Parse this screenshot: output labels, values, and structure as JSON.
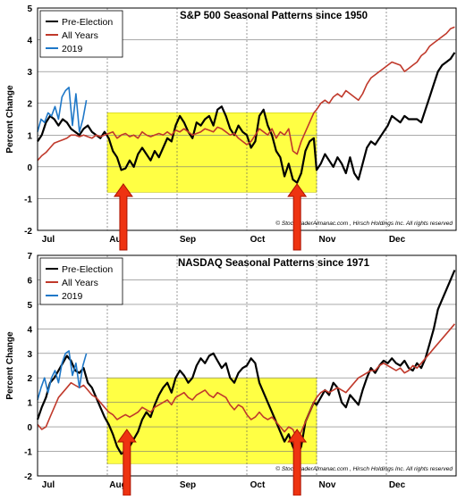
{
  "chart_data": [
    {
      "type": "line",
      "title": "S&P 500 Seasonal Patterns since 1950",
      "ylabel": "Percent Change",
      "xlabel": "",
      "x_range": [
        0,
        6
      ],
      "ylim": [
        -2,
        5
      ],
      "y_ticks": [
        -2,
        -1,
        0,
        1,
        2,
        3,
        4,
        5
      ],
      "month_ticks": [
        {
          "label": "Jul",
          "x": 0.0
        },
        {
          "label": "Aug",
          "x": 1.0
        },
        {
          "label": "Sep",
          "x": 2.0
        },
        {
          "label": "Oct",
          "x": 3.0
        },
        {
          "label": "Nov",
          "x": 4.0
        },
        {
          "label": "Dec",
          "x": 5.0
        }
      ],
      "grid": true,
      "legend_position": "top-left",
      "colors": {
        "Pre-Election": "#000000",
        "All Years": "#c0392b",
        "2019": "#1f78c8"
      },
      "highlight": {
        "x_start": 1.0,
        "x_end": 4.0,
        "y_start": -0.8,
        "y_end": 1.7,
        "color": "#ffff44"
      },
      "arrows": [
        {
          "x": 1.23
        },
        {
          "x": 3.72
        }
      ],
      "annotation": "© StockTraderAlmanac.com , Hirsch Holdings Inc. All rights reserved",
      "series": [
        {
          "name": "Pre-Election",
          "x": [
            0.0,
            0.06,
            0.12,
            0.18,
            0.24,
            0.3,
            0.36,
            0.42,
            0.48,
            0.54,
            0.6,
            0.66,
            0.72,
            0.78,
            0.84,
            0.9,
            0.96,
            1.02,
            1.08,
            1.14,
            1.2,
            1.26,
            1.32,
            1.38,
            1.44,
            1.5,
            1.56,
            1.62,
            1.68,
            1.74,
            1.8,
            1.86,
            1.92,
            1.98,
            2.04,
            2.1,
            2.16,
            2.22,
            2.28,
            2.34,
            2.4,
            2.46,
            2.52,
            2.58,
            2.64,
            2.7,
            2.76,
            2.82,
            2.88,
            2.94,
            3.0,
            3.06,
            3.12,
            3.18,
            3.24,
            3.3,
            3.36,
            3.42,
            3.48,
            3.54,
            3.6,
            3.66,
            3.72,
            3.78,
            3.84,
            3.9,
            3.96,
            4.0,
            4.06,
            4.12,
            4.18,
            4.24,
            4.3,
            4.36,
            4.42,
            4.48,
            4.54,
            4.6,
            4.66,
            4.72,
            4.78,
            4.84,
            4.9,
            4.96,
            5.02,
            5.08,
            5.14,
            5.2,
            5.26,
            5.32,
            5.38,
            5.44,
            5.5,
            5.56,
            5.62,
            5.68,
            5.74,
            5.8,
            5.86,
            5.92,
            5.98
          ],
          "y": [
            0.8,
            1.0,
            1.4,
            1.6,
            1.5,
            1.3,
            1.5,
            1.4,
            1.2,
            1.1,
            1.0,
            1.2,
            1.3,
            1.1,
            1.0,
            0.9,
            1.1,
            0.9,
            0.5,
            0.3,
            -0.1,
            -0.05,
            0.2,
            0.0,
            0.4,
            0.6,
            0.4,
            0.2,
            0.5,
            0.3,
            0.6,
            0.9,
            0.8,
            1.3,
            1.6,
            1.4,
            1.1,
            0.9,
            1.4,
            1.3,
            1.5,
            1.6,
            1.3,
            1.8,
            1.9,
            1.6,
            1.2,
            1.0,
            1.3,
            1.1,
            1.0,
            0.6,
            0.8,
            1.6,
            1.8,
            1.3,
            1.0,
            0.5,
            0.3,
            -0.3,
            0.1,
            -0.4,
            -0.5,
            -0.2,
            0.5,
            0.8,
            0.9,
            -0.1,
            0.1,
            0.4,
            0.2,
            0.0,
            0.3,
            0.1,
            -0.2,
            0.3,
            -0.2,
            -0.4,
            0.1,
            0.6,
            0.8,
            0.7,
            0.9,
            1.1,
            1.3,
            1.6,
            1.5,
            1.4,
            1.6,
            1.5,
            1.5,
            1.5,
            1.4,
            1.8,
            2.2,
            2.6,
            3.0,
            3.2,
            3.3,
            3.4,
            3.6
          ]
        },
        {
          "name": "All Years",
          "x": [
            0.0,
            0.06,
            0.12,
            0.18,
            0.24,
            0.3,
            0.36,
            0.42,
            0.48,
            0.54,
            0.6,
            0.66,
            0.72,
            0.78,
            0.84,
            0.9,
            0.96,
            1.02,
            1.08,
            1.14,
            1.2,
            1.26,
            1.32,
            1.38,
            1.44,
            1.5,
            1.56,
            1.62,
            1.68,
            1.74,
            1.8,
            1.86,
            1.92,
            1.98,
            2.04,
            2.1,
            2.16,
            2.22,
            2.28,
            2.34,
            2.4,
            2.46,
            2.52,
            2.58,
            2.64,
            2.7,
            2.76,
            2.82,
            2.88,
            2.94,
            3.0,
            3.06,
            3.12,
            3.18,
            3.24,
            3.3,
            3.36,
            3.42,
            3.48,
            3.54,
            3.6,
            3.66,
            3.72,
            3.78,
            3.84,
            3.9,
            3.96,
            4.0,
            4.06,
            4.12,
            4.18,
            4.24,
            4.3,
            4.36,
            4.42,
            4.48,
            4.54,
            4.6,
            4.66,
            4.72,
            4.78,
            4.84,
            4.9,
            4.96,
            5.02,
            5.08,
            5.14,
            5.2,
            5.26,
            5.32,
            5.38,
            5.44,
            5.5,
            5.56,
            5.62,
            5.68,
            5.74,
            5.8,
            5.86,
            5.92,
            5.98
          ],
          "y": [
            0.2,
            0.35,
            0.45,
            0.6,
            0.75,
            0.8,
            0.85,
            0.9,
            1.0,
            1.0,
            0.95,
            1.0,
            0.95,
            0.9,
            1.0,
            0.95,
            1.0,
            1.05,
            1.1,
            0.9,
            1.0,
            1.05,
            0.95,
            1.0,
            0.9,
            1.1,
            1.0,
            0.95,
            1.0,
            1.05,
            1.0,
            1.1,
            1.0,
            1.15,
            1.1,
            1.2,
            1.1,
            1.0,
            1.05,
            1.1,
            1.2,
            1.15,
            1.1,
            1.25,
            1.2,
            1.1,
            1.0,
            1.05,
            0.9,
            0.8,
            0.7,
            0.8,
            1.0,
            1.2,
            1.1,
            1.0,
            1.2,
            0.9,
            1.1,
            1.0,
            1.2,
            0.5,
            0.4,
            0.8,
            1.1,
            1.4,
            1.7,
            1.8,
            2.0,
            2.1,
            2.0,
            2.2,
            2.3,
            2.2,
            2.4,
            2.3,
            2.2,
            2.1,
            2.3,
            2.6,
            2.8,
            2.9,
            3.0,
            3.1,
            3.2,
            3.3,
            3.25,
            3.2,
            3.0,
            3.1,
            3.2,
            3.3,
            3.5,
            3.6,
            3.8,
            3.9,
            4.0,
            4.1,
            4.2,
            4.35,
            4.4
          ]
        },
        {
          "name": "2019",
          "x": [
            0.0,
            0.05,
            0.1,
            0.15,
            0.2,
            0.25,
            0.3,
            0.35,
            0.4,
            0.45,
            0.5,
            0.55,
            0.6,
            0.65,
            0.7
          ],
          "y": [
            1.1,
            1.5,
            1.4,
            1.7,
            1.6,
            1.9,
            1.5,
            2.2,
            2.4,
            2.5,
            1.3,
            2.3,
            1.1,
            1.5,
            2.1
          ]
        }
      ]
    },
    {
      "type": "line",
      "title": "NASDAQ Seasonal Patterns since 1971",
      "ylabel": "Percent Change",
      "xlabel": "",
      "x_range": [
        0,
        6
      ],
      "ylim": [
        -2,
        7
      ],
      "y_ticks": [
        -2,
        -1,
        0,
        1,
        2,
        3,
        4,
        5,
        6,
        7
      ],
      "month_ticks": [
        {
          "label": "Jul",
          "x": 0.0
        },
        {
          "label": "Aug",
          "x": 1.0
        },
        {
          "label": "Sep",
          "x": 2.0
        },
        {
          "label": "Oct",
          "x": 3.0
        },
        {
          "label": "Nov",
          "x": 4.0
        },
        {
          "label": "Dec",
          "x": 5.0
        }
      ],
      "grid": true,
      "legend_position": "top-left",
      "colors": {
        "Pre-Election": "#000000",
        "All Years": "#c0392b",
        "2019": "#1f78c8"
      },
      "highlight": {
        "x_start": 1.0,
        "x_end": 4.0,
        "y_start": -1.5,
        "y_end": 2.0,
        "color": "#ffff44"
      },
      "arrows": [
        {
          "x": 1.28
        },
        {
          "x": 3.72
        }
      ],
      "annotation": "© StockTraderAlmanac.com , Hirsch Holdings Inc. All rights reserved",
      "series": [
        {
          "name": "Pre-Election",
          "x": [
            0.0,
            0.06,
            0.12,
            0.18,
            0.24,
            0.3,
            0.36,
            0.42,
            0.48,
            0.54,
            0.6,
            0.66,
            0.72,
            0.78,
            0.84,
            0.9,
            0.96,
            1.02,
            1.08,
            1.14,
            1.2,
            1.26,
            1.32,
            1.38,
            1.44,
            1.5,
            1.56,
            1.62,
            1.68,
            1.74,
            1.8,
            1.86,
            1.92,
            1.98,
            2.04,
            2.1,
            2.16,
            2.22,
            2.28,
            2.34,
            2.4,
            2.46,
            2.52,
            2.58,
            2.64,
            2.7,
            2.76,
            2.82,
            2.88,
            2.94,
            3.0,
            3.06,
            3.12,
            3.18,
            3.24,
            3.3,
            3.36,
            3.42,
            3.48,
            3.54,
            3.6,
            3.66,
            3.72,
            3.78,
            3.84,
            3.9,
            3.96,
            4.0,
            4.06,
            4.12,
            4.18,
            4.24,
            4.3,
            4.36,
            4.42,
            4.48,
            4.54,
            4.6,
            4.66,
            4.72,
            4.78,
            4.84,
            4.9,
            4.96,
            5.02,
            5.08,
            5.14,
            5.2,
            5.26,
            5.32,
            5.38,
            5.44,
            5.5,
            5.56,
            5.62,
            5.68,
            5.74,
            5.8,
            5.86,
            5.92,
            5.98
          ],
          "y": [
            0.3,
            0.8,
            1.2,
            1.8,
            2.0,
            2.3,
            2.6,
            2.9,
            2.7,
            2.3,
            2.2,
            2.4,
            1.8,
            1.6,
            1.2,
            0.8,
            0.4,
            0.1,
            -0.3,
            -0.8,
            -1.1,
            -1.0,
            -0.8,
            -0.5,
            -0.2,
            0.3,
            0.6,
            0.4,
            0.9,
            1.3,
            1.6,
            1.8,
            1.4,
            2.0,
            2.3,
            2.1,
            1.8,
            2.0,
            2.5,
            2.8,
            2.6,
            2.9,
            3.0,
            2.7,
            2.4,
            2.6,
            2.0,
            1.8,
            2.2,
            2.4,
            2.5,
            2.8,
            2.6,
            1.8,
            1.4,
            1.0,
            0.6,
            0.2,
            -0.2,
            -0.6,
            -0.3,
            -0.8,
            -1.2,
            -0.8,
            0.2,
            0.6,
            1.0,
            0.9,
            1.2,
            1.5,
            1.3,
            1.8,
            1.6,
            1.0,
            0.8,
            1.3,
            1.1,
            0.9,
            1.5,
            2.0,
            2.4,
            2.2,
            2.5,
            2.7,
            2.6,
            2.8,
            2.6,
            2.5,
            2.7,
            2.4,
            2.3,
            2.6,
            2.4,
            2.8,
            3.4,
            4.0,
            4.8,
            5.2,
            5.6,
            6.0,
            6.4
          ]
        },
        {
          "name": "All Years",
          "x": [
            0.0,
            0.06,
            0.12,
            0.18,
            0.24,
            0.3,
            0.36,
            0.42,
            0.48,
            0.54,
            0.6,
            0.66,
            0.72,
            0.78,
            0.84,
            0.9,
            0.96,
            1.02,
            1.08,
            1.14,
            1.2,
            1.26,
            1.32,
            1.38,
            1.44,
            1.5,
            1.56,
            1.62,
            1.68,
            1.74,
            1.8,
            1.86,
            1.92,
            1.98,
            2.04,
            2.1,
            2.16,
            2.22,
            2.28,
            2.34,
            2.4,
            2.46,
            2.52,
            2.58,
            2.64,
            2.7,
            2.76,
            2.82,
            2.88,
            2.94,
            3.0,
            3.06,
            3.12,
            3.18,
            3.24,
            3.3,
            3.36,
            3.42,
            3.48,
            3.54,
            3.6,
            3.66,
            3.72,
            3.78,
            3.84,
            3.9,
            3.96,
            4.0,
            4.06,
            4.12,
            4.18,
            4.24,
            4.3,
            4.36,
            4.42,
            4.48,
            4.54,
            4.6,
            4.66,
            4.72,
            4.78,
            4.84,
            4.9,
            4.96,
            5.02,
            5.08,
            5.14,
            5.2,
            5.26,
            5.32,
            5.38,
            5.44,
            5.5,
            5.56,
            5.62,
            5.68,
            5.74,
            5.8,
            5.86,
            5.92,
            5.98
          ],
          "y": [
            0.1,
            -0.1,
            0.0,
            0.4,
            0.8,
            1.2,
            1.4,
            1.6,
            1.8,
            1.7,
            1.6,
            1.7,
            1.5,
            1.3,
            1.2,
            1.0,
            0.8,
            0.6,
            0.5,
            0.3,
            0.4,
            0.5,
            0.4,
            0.5,
            0.6,
            0.8,
            0.7,
            0.6,
            0.8,
            0.9,
            1.0,
            1.1,
            0.9,
            1.2,
            1.3,
            1.4,
            1.2,
            1.1,
            1.3,
            1.4,
            1.5,
            1.3,
            1.2,
            1.4,
            1.3,
            1.2,
            0.9,
            0.7,
            0.9,
            0.8,
            0.5,
            0.3,
            0.4,
            0.6,
            0.4,
            0.3,
            0.4,
            0.2,
            0.0,
            -0.2,
            0.0,
            -0.1,
            -0.5,
            -0.2,
            0.2,
            0.6,
            1.0,
            1.2,
            1.4,
            1.5,
            1.4,
            1.5,
            1.6,
            1.5,
            1.4,
            1.6,
            1.8,
            2.0,
            2.1,
            2.2,
            2.3,
            2.3,
            2.5,
            2.6,
            2.5,
            2.4,
            2.3,
            2.4,
            2.2,
            2.3,
            2.5,
            2.4,
            2.6,
            2.8,
            3.0,
            3.2,
            3.4,
            3.6,
            3.8,
            4.0,
            4.2
          ]
        },
        {
          "name": "2019",
          "x": [
            0.0,
            0.05,
            0.1,
            0.15,
            0.2,
            0.25,
            0.3,
            0.35,
            0.4,
            0.45,
            0.5,
            0.55,
            0.6,
            0.65,
            0.7
          ],
          "y": [
            1.1,
            1.6,
            2.0,
            1.4,
            2.0,
            2.3,
            1.8,
            2.6,
            3.0,
            3.1,
            2.1,
            2.6,
            1.6,
            2.5,
            3.0
          ]
        }
      ]
    }
  ]
}
